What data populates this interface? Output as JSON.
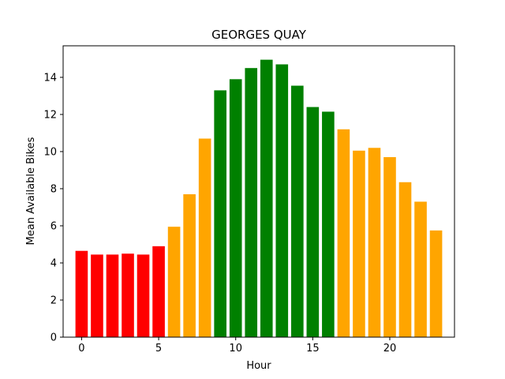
{
  "chart_data": {
    "type": "bar",
    "title": "GEORGES QUAY",
    "xlabel": "Hour",
    "ylabel": "Mean Available Bikes",
    "x": [
      0,
      1,
      2,
      3,
      4,
      5,
      6,
      7,
      8,
      9,
      10,
      11,
      12,
      13,
      14,
      15,
      16,
      17,
      18,
      19,
      20,
      21,
      22,
      23
    ],
    "values": [
      4.65,
      4.45,
      4.45,
      4.5,
      4.45,
      4.9,
      5.95,
      7.7,
      10.7,
      13.3,
      13.9,
      14.5,
      14.95,
      14.7,
      13.55,
      12.4,
      12.15,
      11.2,
      10.05,
      10.2,
      9.7,
      8.35,
      7.3,
      5.75
    ],
    "colors": [
      "#ff0000",
      "#ff0000",
      "#ff0000",
      "#ff0000",
      "#ff0000",
      "#ff0000",
      "#ffa500",
      "#ffa500",
      "#ffa500",
      "#008000",
      "#008000",
      "#008000",
      "#008000",
      "#008000",
      "#008000",
      "#008000",
      "#008000",
      "#ffa500",
      "#ffa500",
      "#ffa500",
      "#ffa500",
      "#ffa500",
      "#ffa500",
      "#ffa500"
    ],
    "xlim": [
      -1.2,
      24.2
    ],
    "ylim": [
      0,
      15.7
    ],
    "xticks": [
      0,
      5,
      10,
      15,
      20
    ],
    "yticks": [
      0,
      2,
      4,
      6,
      8,
      10,
      12,
      14
    ],
    "grid": false
  }
}
